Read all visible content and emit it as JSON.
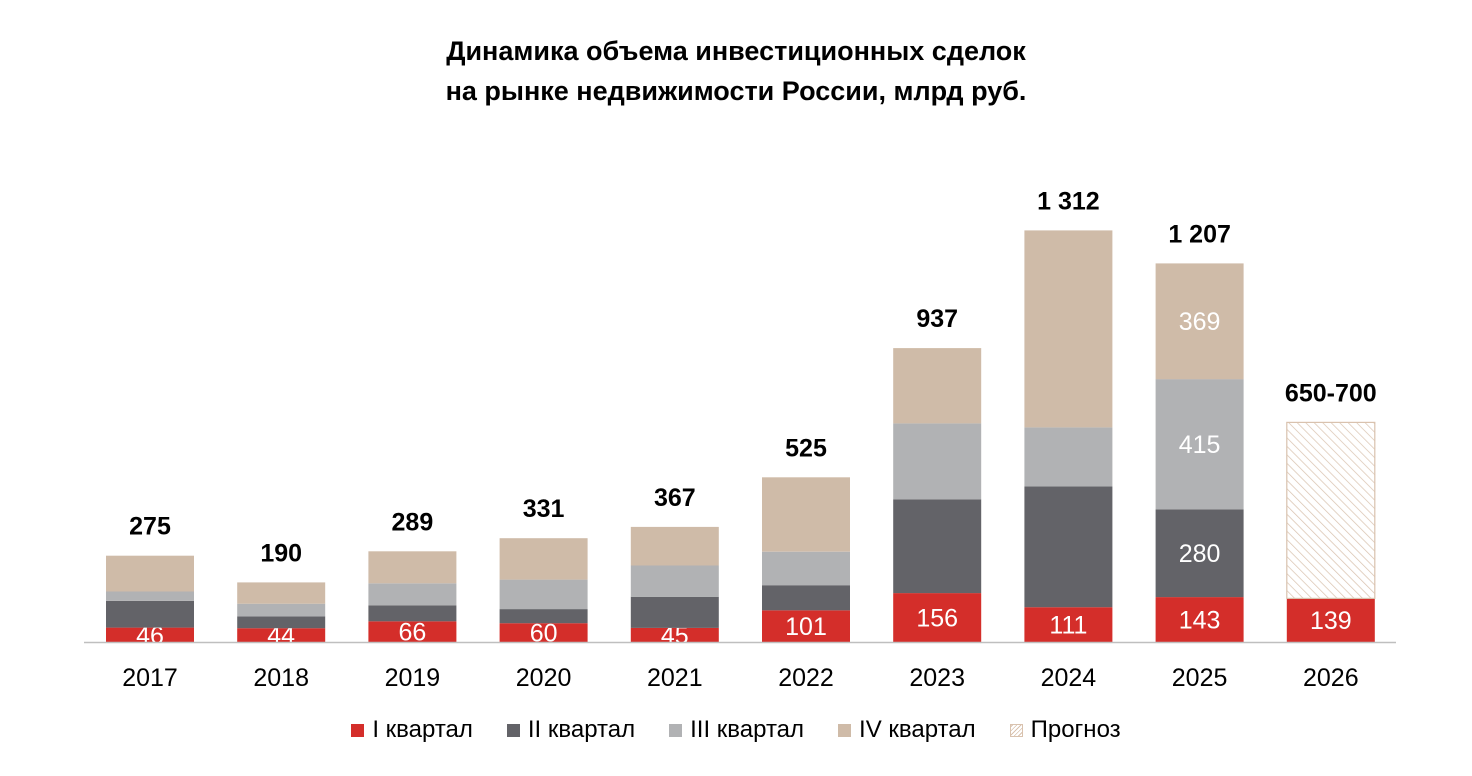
{
  "chart_data": {
    "type": "bar",
    "stacked": true,
    "title": [
      "Динамика объема инвестиционных сделок",
      "на рынке недвижимости России, млрд руб."
    ],
    "xlabel": "",
    "ylabel": "",
    "ylim": [
      0,
      1400
    ],
    "grid": false,
    "legend_position": "bottom",
    "categories": [
      "2017",
      "2018",
      "2019",
      "2020",
      "2021",
      "2022",
      "2023",
      "2024",
      "2025",
      "2026"
    ],
    "totals": [
      "275",
      "190",
      "289",
      "331",
      "367",
      "525",
      "937",
      "1 312",
      "1 207",
      "650-700"
    ],
    "series": [
      {
        "name": "I квартал",
        "color": "#d42e2a",
        "values": [
          46,
          44,
          66,
          60,
          45,
          101,
          156,
          111,
          143,
          139
        ],
        "labels": [
          "46",
          "44",
          "66",
          "60",
          "45",
          "101",
          "156",
          "111",
          "143",
          "139"
        ]
      },
      {
        "name": "II квартал",
        "color": "#636368",
        "values": [
          85,
          38,
          51,
          45,
          99,
          80,
          299,
          385,
          280,
          0
        ],
        "labels": [
          "",
          "",
          "",
          "",
          "",
          "",
          "",
          "",
          "280",
          ""
        ]
      },
      {
        "name": "III квартал",
        "color": "#b1b2b4",
        "values": [
          30,
          40,
          70,
          94,
          100,
          107,
          242,
          188,
          415,
          0
        ],
        "labels": [
          "",
          "",
          "",
          "",
          "",
          "",
          "",
          "",
          "415",
          ""
        ]
      },
      {
        "name": "IV квартал",
        "color": "#cfbba8",
        "values": [
          114,
          68,
          102,
          132,
          123,
          237,
          240,
          628,
          369,
          0
        ],
        "labels": [
          "",
          "",
          "",
          "",
          "",
          "",
          "",
          "",
          "369",
          ""
        ]
      },
      {
        "name": "Прогноз",
        "color": "#d9c2ae",
        "values": [
          0,
          0,
          0,
          0,
          0,
          0,
          0,
          0,
          0,
          561
        ],
        "labels": [
          "",
          "",
          "",
          "",
          "",
          "",
          "",
          "",
          "",
          ""
        ]
      }
    ]
  }
}
